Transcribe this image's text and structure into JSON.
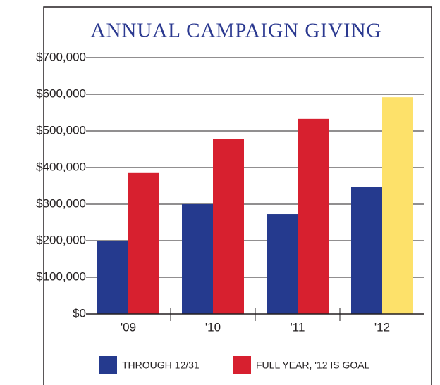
{
  "chart_data": {
    "type": "bar",
    "title": "ANNUAL CAMPAIGN GIVING",
    "categories": [
      "'09",
      "'10",
      "'11",
      "'12"
    ],
    "series": [
      {
        "name": "THROUGH 12/31",
        "color": "#253a8e",
        "values": [
          200000,
          300000,
          273000,
          348000
        ]
      },
      {
        "name": "FULL YEAR, '12 IS GOAL",
        "color": "#d7202f",
        "colors": [
          "#d7202f",
          "#d7202f",
          "#d7202f",
          "#fde16a"
        ],
        "values": [
          385000,
          477000,
          533000,
          592000
        ]
      }
    ],
    "ylim": [
      0,
      700000
    ],
    "yticks": [
      {
        "value": 0,
        "label": "$0"
      },
      {
        "value": 100000,
        "label": "$100,000"
      },
      {
        "value": 200000,
        "label": "$200,000"
      },
      {
        "value": 300000,
        "label": "$300,000"
      },
      {
        "value": 400000,
        "label": "$400,000"
      },
      {
        "value": 500000,
        "label": "$500,000"
      },
      {
        "value": 600000,
        "label": "$600,000"
      },
      {
        "value": 700000,
        "label": "$700,000"
      }
    ],
    "grid": true,
    "legend": "bottom"
  }
}
